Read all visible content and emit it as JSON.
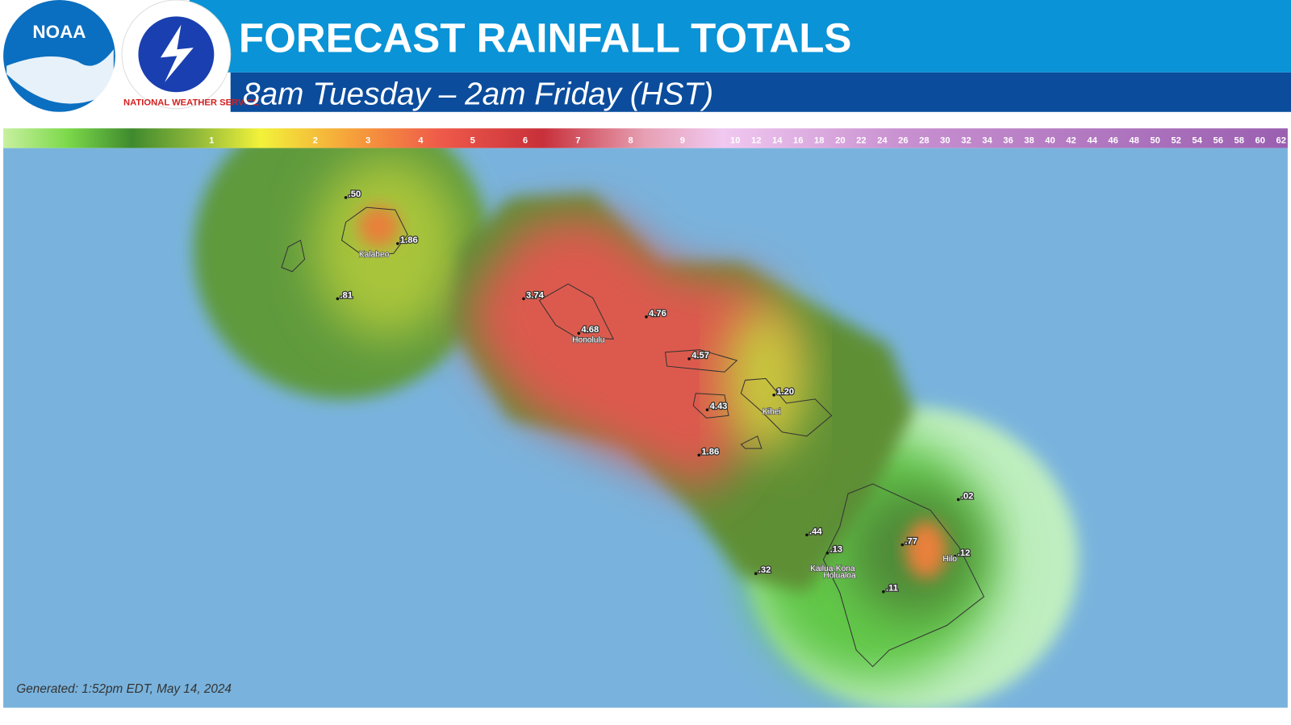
{
  "header": {
    "logo_text": "NOAA",
    "nws_text": "NATIONAL WEATHER SERVICE",
    "title": "FORECAST RAINFALL TOTALS",
    "subtitle": "8am Tuesday – 2am Friday (HST)"
  },
  "legend": {
    "labels": [
      "1",
      "2",
      "3",
      "4",
      "5",
      "6",
      "7",
      "8",
      "9",
      "10",
      "12",
      "14",
      "16",
      "18",
      "20",
      "22",
      "24",
      "26",
      "28",
      "30",
      "32",
      "34",
      "36",
      "38",
      "40",
      "42",
      "44",
      "46",
      "48",
      "50",
      "52",
      "54",
      "56",
      "58",
      "60",
      "62"
    ]
  },
  "map": {
    "points": [
      ".50",
      "1.86",
      ".81",
      "3.74",
      "4.68",
      "4.76",
      "4.57",
      "1.20",
      "4.43",
      "1.86",
      ".44",
      ".13",
      ".77",
      ".12",
      ".02",
      ".32",
      ".11"
    ],
    "places": [
      "Kalaheo",
      "Honolulu",
      "Kihei",
      "Hilo",
      "Kailua-Kona",
      "Holualoa"
    ]
  },
  "footer": {
    "generated": "Generated: 1:52pm EDT, May 14, 2024"
  }
}
